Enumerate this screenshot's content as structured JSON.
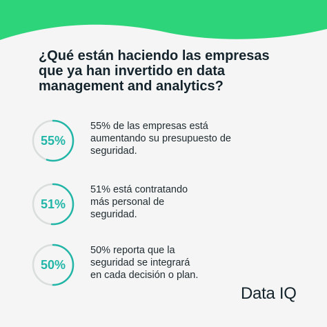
{
  "headline": {
    "lines": [
      "¿Qué están haciendo las empresas",
      "que ya han invertido en data",
      "management and analytics?"
    ]
  },
  "stats": [
    {
      "value_label": "55%",
      "fraction": 0.55,
      "text_lines": [
        "55% de las empresas está",
        "aumentando su presupuesto de",
        "seguridad."
      ]
    },
    {
      "value_label": "51%",
      "fraction": 0.51,
      "text_lines": [
        "51% está contratando",
        "más personal de",
        "seguridad."
      ]
    },
    {
      "value_label": "50%",
      "fraction": 0.5,
      "text_lines": [
        "50% reporta que la",
        "seguridad se integrará",
        "en cada decisión o plan."
      ]
    }
  ],
  "logo": {
    "text": "Data IQ"
  },
  "colors": {
    "accent": "#22b6a8",
    "banner_green": "#2ed47a",
    "ring_track": "#d9dddc",
    "text_dark": "#15242c",
    "background": "#f4f5f4"
  }
}
